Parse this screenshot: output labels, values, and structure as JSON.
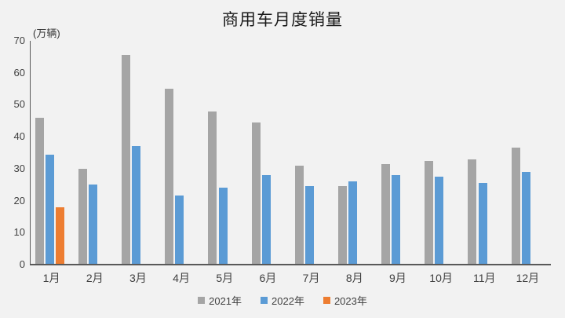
{
  "title": "商用车月度销量",
  "y_axis": {
    "unit_label": "(万辆)",
    "ticks": [
      0,
      10,
      20,
      30,
      40,
      50,
      60,
      70
    ]
  },
  "chart_data": {
    "type": "bar",
    "title": "商用车月度销量",
    "xlabel": "",
    "ylabel": "(万辆)",
    "ylim": [
      0,
      70
    ],
    "grid": false,
    "legend_position": "bottom",
    "categories": [
      "1月",
      "2月",
      "3月",
      "4月",
      "5月",
      "6月",
      "7月",
      "8月",
      "9月",
      "10月",
      "11月",
      "12月"
    ],
    "series": [
      {
        "name": "2021年",
        "color": "#A5A5A5",
        "values": [
          46,
          30,
          65.5,
          55,
          48,
          44.5,
          31,
          24.5,
          31.5,
          32.5,
          33,
          36.5
        ]
      },
      {
        "name": "2022年",
        "color": "#5B9BD5",
        "values": [
          34.5,
          25,
          37,
          21.5,
          24,
          28,
          24.5,
          26,
          28,
          27.5,
          25.5,
          29
        ]
      },
      {
        "name": "2023年",
        "color": "#ED7D31",
        "values": [
          18,
          null,
          null,
          null,
          null,
          null,
          null,
          null,
          null,
          null,
          null,
          null
        ]
      }
    ]
  },
  "colors": {
    "background": "#F2F2F2",
    "axis_line": "#595959",
    "tick_text": "#404040",
    "title_text": "#1A1A1A"
  }
}
